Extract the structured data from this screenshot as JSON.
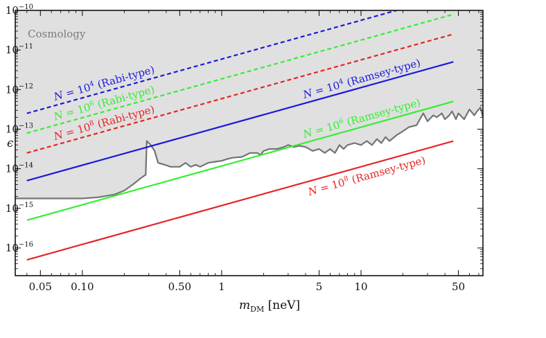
{
  "chart_data": {
    "type": "line",
    "xlabel_main": "m",
    "xlabel_sub": "DM",
    "xlabel_unit": " [neV]",
    "ylabel": "ϵ",
    "x_scale": "log",
    "y_scale": "log",
    "xlim": [
      0.033,
      75
    ],
    "ylim_exp": [
      -16.7,
      -10
    ],
    "grid": false,
    "x_ticks": [
      {
        "value": 0.05,
        "label": "0.05"
      },
      {
        "value": 0.1,
        "label": "0.10"
      },
      {
        "value": 0.5,
        "label": "0.50"
      },
      {
        "value": 1,
        "label": "1"
      },
      {
        "value": 5,
        "label": "5"
      },
      {
        "value": 10,
        "label": "10"
      },
      {
        "value": 50,
        "label": "50"
      }
    ],
    "y_ticks": [
      {
        "exp": -10,
        "base": "10",
        "sup": "−10"
      },
      {
        "exp": -11,
        "base": "10",
        "sup": "−11"
      },
      {
        "exp": -12,
        "base": "10",
        "sup": "−12"
      },
      {
        "exp": -13,
        "base": "10",
        "sup": "−13"
      },
      {
        "exp": -14,
        "base": "10",
        "sup": "−14"
      },
      {
        "exp": -15,
        "base": "10",
        "sup": "−15"
      },
      {
        "exp": -16,
        "base": "10",
        "sup": "−16"
      }
    ],
    "region": {
      "label": "Cosmology",
      "fill": "#e0e0e0",
      "edge_color": "#737373",
      "boundary_x": [
        0.033,
        0.06,
        0.1,
        0.13,
        0.17,
        0.2,
        0.23,
        0.26,
        0.285,
        0.29,
        0.31,
        0.33,
        0.35,
        0.39,
        0.43,
        0.5,
        0.55,
        0.6,
        0.65,
        0.7,
        0.8,
        0.9,
        1.0,
        1.1,
        1.2,
        1.4,
        1.6,
        1.8,
        1.9,
        2.0,
        2.2,
        2.5,
        2.8,
        3.0,
        3.3,
        3.6,
        4.0,
        4.5,
        5.0,
        5.5,
        6.0,
        6.5,
        7.0,
        7.5,
        8.0,
        9.0,
        10,
        11,
        12,
        13,
        14,
        15,
        16,
        18,
        20,
        22,
        25,
        28,
        30,
        33,
        35,
        38,
        40,
        43,
        45,
        48,
        50,
        55,
        60,
        65,
        68,
        72,
        75
      ],
      "boundary_exp": [
        -14.75,
        -14.75,
        -14.75,
        -14.72,
        -14.65,
        -14.55,
        -14.4,
        -14.25,
        -14.15,
        -13.3,
        -13.4,
        -13.55,
        -13.85,
        -13.9,
        -13.95,
        -13.95,
        -13.85,
        -13.95,
        -13.9,
        -13.95,
        -13.85,
        -13.82,
        -13.8,
        -13.75,
        -13.72,
        -13.7,
        -13.6,
        -13.6,
        -13.65,
        -13.55,
        -13.5,
        -13.5,
        -13.45,
        -13.4,
        -13.45,
        -13.42,
        -13.45,
        -13.55,
        -13.5,
        -13.6,
        -13.5,
        -13.6,
        -13.4,
        -13.5,
        -13.4,
        -13.35,
        -13.4,
        -13.3,
        -13.4,
        -13.25,
        -13.35,
        -13.2,
        -13.3,
        -13.15,
        -13.05,
        -12.95,
        -12.9,
        -12.6,
        -12.8,
        -12.65,
        -12.7,
        -12.6,
        -12.75,
        -12.65,
        -12.55,
        -12.75,
        -12.6,
        -12.75,
        -12.5,
        -12.65,
        -12.55,
        -12.45,
        -12.7
      ]
    },
    "series": [
      {
        "N": "10",
        "N_exp": "4",
        "kind": "Rabi-type",
        "color": "#1a1adb",
        "dash": true,
        "x": [
          0.04,
          18
        ],
        "exp": [
          -12.6,
          -10
        ]
      },
      {
        "N": "10",
        "N_exp": "6",
        "kind": "Rabi-type",
        "color": "#33ee33",
        "dash": true,
        "x": [
          0.04,
          46
        ],
        "exp": [
          -13.1,
          -10.1
        ]
      },
      {
        "N": "10",
        "N_exp": "8",
        "kind": "Rabi-type",
        "color": "#e62424",
        "dash": true,
        "x": [
          0.04,
          46
        ],
        "exp": [
          -13.6,
          -10.6
        ]
      },
      {
        "N": "10",
        "N_exp": "4",
        "kind": "Ramsey-type",
        "color": "#1a1adb",
        "dash": false,
        "x": [
          0.04,
          46
        ],
        "exp": [
          -14.3,
          -11.3
        ]
      },
      {
        "N": "10",
        "N_exp": "6",
        "kind": "Ramsey-type",
        "color": "#33ee33",
        "dash": false,
        "x": [
          0.04,
          46
        ],
        "exp": [
          -15.3,
          -12.3
        ]
      },
      {
        "N": "10",
        "N_exp": "8",
        "kind": "Ramsey-type",
        "color": "#e62424",
        "dash": false,
        "x": [
          0.04,
          46
        ],
        "exp": [
          -16.3,
          -13.3
        ]
      }
    ],
    "annotations": {
      "prefix": "N = ",
      "open": "(",
      "close": ")"
    }
  }
}
